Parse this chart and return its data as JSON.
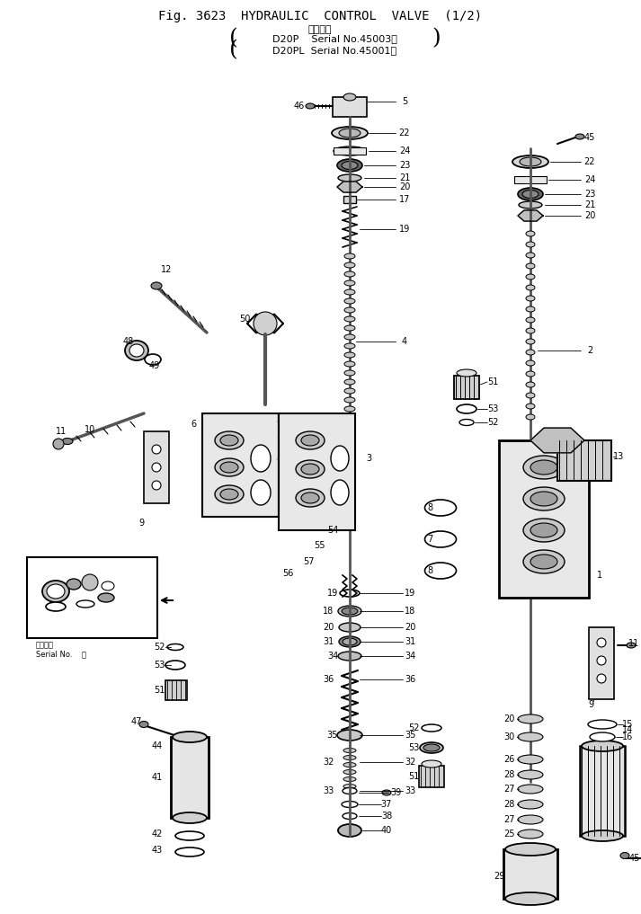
{
  "title_line1": "Fig. 3623  HYDRAULIC  CONTROL  VALVE (1/2)",
  "title_line2": "適用号機",
  "title_line3": "(D20P   Serial No.45003～)",
  "title_line4": "(D20PL  Serial No.45001～)",
  "bg_color": "#ffffff",
  "drawing_color": "#000000",
  "fig_width": 7.13,
  "fig_height": 10.17,
  "dpi": 100
}
